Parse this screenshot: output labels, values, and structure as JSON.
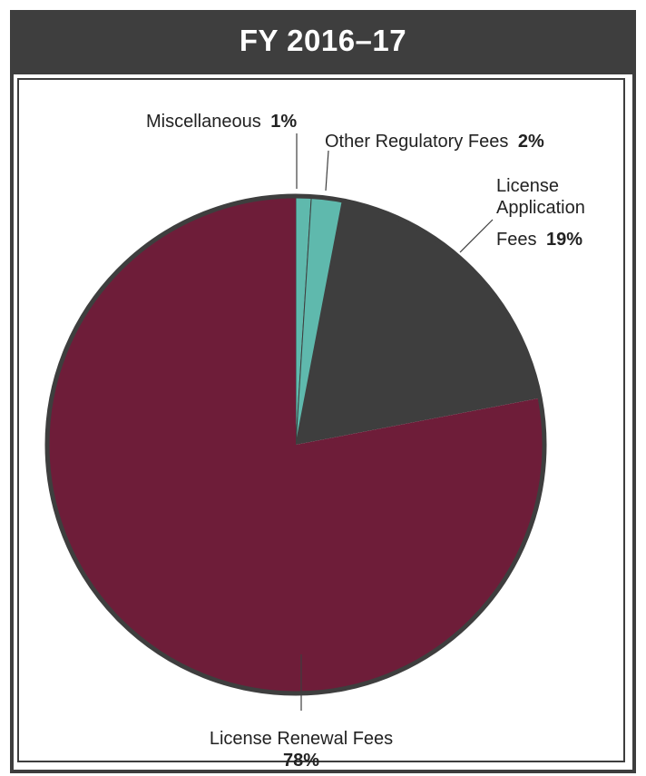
{
  "chart_data": {
    "type": "pie",
    "title": "FY 2016–17",
    "slices": [
      {
        "label": "Miscellaneous",
        "percent_label": "1%",
        "value": 1,
        "color": "#5fb9ad"
      },
      {
        "label": "Other Regulatory Fees",
        "percent_label": "2%",
        "value": 2,
        "color": "#5fb9ad"
      },
      {
        "label": "License Application Fees",
        "percent_label": "19%",
        "value": 19,
        "color": "#3e3e3e"
      },
      {
        "label": "License Renewal Fees",
        "percent_label": "78%",
        "value": 78,
        "color": "#6e1d39"
      }
    ],
    "label_lines": {
      "misc": "Miscellaneous",
      "other": "Other Regulatory Fees",
      "app_1": "License",
      "app_2": "Application",
      "app_3": "Fees",
      "renewal": "License Renewal Fees"
    }
  },
  "colors": {
    "frame": "#3e3e3e",
    "pie_outline": "#3e3e3e",
    "teal": "#5fb9ad",
    "dark_gray": "#3e3e3e",
    "maroon": "#6e1d39"
  }
}
